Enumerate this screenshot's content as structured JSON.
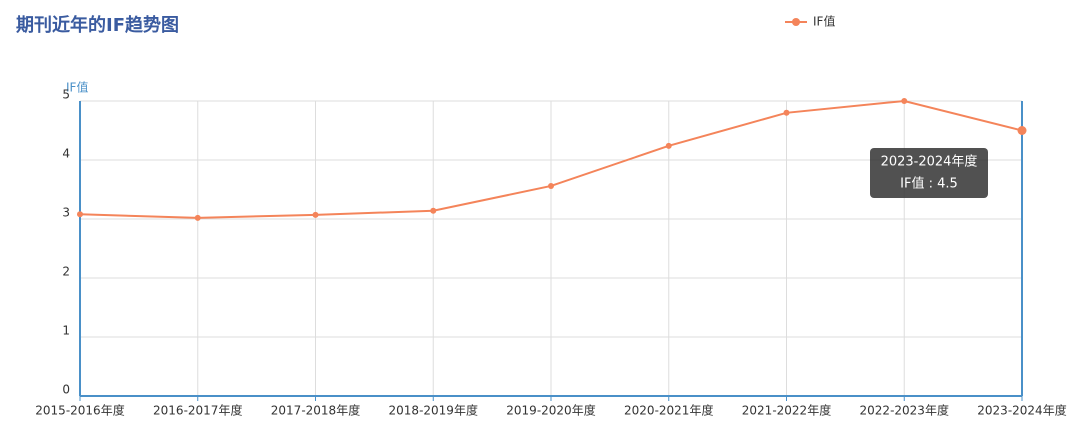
{
  "chart_data": {
    "type": "line",
    "title": "期刊近年的IF趋势图",
    "y_axis_label": "IF值",
    "categories": [
      "2015-2016年度",
      "2016-2017年度",
      "2017-2018年度",
      "2018-2019年度",
      "2019-2020年度",
      "2020-2021年度",
      "2021-2022年度",
      "2022-2023年度",
      "2023-2024年度"
    ],
    "series": [
      {
        "name": "IF值",
        "color": "#f4845a",
        "values": [
          3.08,
          3.02,
          3.07,
          3.14,
          3.56,
          4.24,
          4.8,
          5.0,
          4.5
        ]
      }
    ],
    "ylim": [
      0,
      5
    ],
    "yticks": [
      0,
      1,
      2,
      3,
      4,
      5
    ],
    "grid": true,
    "legend": "top-right",
    "tooltip": {
      "title": "2023-2024年度",
      "text": "IF值 : 4.5"
    }
  }
}
